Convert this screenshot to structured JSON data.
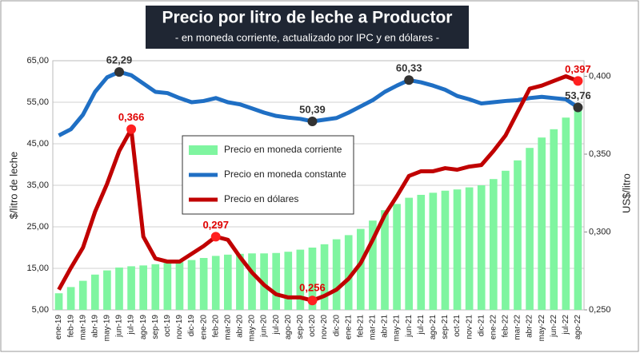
{
  "chart_data": {
    "type": "bar_line",
    "title": "Precio por litro de leche a Productor",
    "subtitle": "- en moneda corriente, actualizado por IPC y en dólares -",
    "y_label": "$/litro de leche",
    "y2_label": "US$/litro",
    "categories": [
      "ene-19",
      "feb-19",
      "mar-19",
      "abr-19",
      "may-19",
      "jun-19",
      "jul-19",
      "ago-19",
      "sep-19",
      "oct-19",
      "nov-19",
      "dic-19",
      "ene-20",
      "feb-20",
      "mar-20",
      "abr-20",
      "may-20",
      "jun-20",
      "jul-20",
      "ago-20",
      "sep-20",
      "oct-20",
      "nov-20",
      "dic-20",
      "ene-21",
      "feb-21",
      "mar-21",
      "abr-21",
      "may-21",
      "jun-21",
      "jul-21",
      "ago-21",
      "sep-21",
      "oct-21",
      "nov-21",
      "dic-21",
      "ene-22",
      "feb-22",
      "mar-22",
      "abr-22",
      "may-22",
      "jun-22",
      "jul-22",
      "ago-22"
    ],
    "ylim": [
      5,
      65
    ],
    "yticks": [
      {
        "value": 5,
        "label": "5,00"
      },
      {
        "value": 15,
        "label": "15,00"
      },
      {
        "value": 25,
        "label": "25,00"
      },
      {
        "value": 35,
        "label": "35,00"
      },
      {
        "value": 45,
        "label": "45,00"
      },
      {
        "value": 55,
        "label": "55,00"
      },
      {
        "value": 65,
        "label": "65,00"
      }
    ],
    "y2lim": [
      0.25,
      0.41
    ],
    "y2ticks": [
      {
        "value": 0.25,
        "label": "0,250"
      },
      {
        "value": 0.3,
        "label": "0,300"
      },
      {
        "value": 0.35,
        "label": "0,350"
      },
      {
        "value": 0.4,
        "label": "0,400"
      }
    ],
    "grid": true,
    "series": [
      {
        "name": "Precio en moneda corriente",
        "kind": "bar",
        "color": "#7ff5a0",
        "values": [
          9,
          10.5,
          12,
          13.5,
          14.5,
          15.2,
          15.5,
          15.7,
          16,
          16.3,
          16.5,
          17,
          17.5,
          18,
          18.3,
          18.5,
          18.6,
          18.6,
          18.7,
          19,
          19.5,
          20,
          20.8,
          22,
          23,
          24.5,
          26.5,
          29,
          30.5,
          32,
          32.7,
          33.2,
          33.7,
          34,
          34.5,
          35,
          36.5,
          38.5,
          41,
          44,
          46.5,
          48.5,
          51.3,
          53.76
        ]
      },
      {
        "name": "Precio en moneda constante",
        "kind": "line",
        "color": "#1f6fc4",
        "values": [
          47,
          48.5,
          52,
          57.5,
          61,
          62.29,
          61.5,
          59.5,
          57.5,
          57.2,
          56,
          55,
          55.3,
          56,
          55,
          54.5,
          53.5,
          52.5,
          51.7,
          51.3,
          51,
          50.39,
          50.8,
          51.2,
          52.5,
          54,
          55.5,
          57.5,
          59,
          60.33,
          59.8,
          59,
          58,
          56.5,
          55.7,
          54.7,
          55,
          55.3,
          55.5,
          56,
          56.3,
          56,
          55.7,
          53.76
        ],
        "value_labels": [
          null,
          null,
          null,
          null,
          null,
          "62,29",
          null,
          null,
          null,
          null,
          null,
          null,
          null,
          null,
          null,
          null,
          null,
          null,
          null,
          null,
          null,
          "50,39",
          null,
          null,
          null,
          null,
          null,
          null,
          null,
          "60,33",
          null,
          null,
          null,
          null,
          null,
          null,
          null,
          null,
          null,
          null,
          null,
          null,
          null,
          "53,76"
        ]
      },
      {
        "name": "Precio en dólares",
        "kind": "line",
        "axis": "y2",
        "color": "#c00000",
        "values": [
          0.263,
          0.277,
          0.29,
          0.313,
          0.331,
          0.352,
          0.366,
          0.297,
          0.283,
          0.281,
          0.281,
          0.286,
          0.291,
          0.297,
          0.295,
          0.284,
          0.274,
          0.266,
          0.26,
          0.258,
          0.258,
          0.256,
          0.259,
          0.263,
          0.27,
          0.28,
          0.295,
          0.311,
          0.323,
          0.336,
          0.339,
          0.339,
          0.341,
          0.34,
          0.342,
          0.343,
          0.352,
          0.362,
          0.377,
          0.392,
          0.394,
          0.397,
          0.4,
          0.397
        ],
        "value_labels": [
          null,
          null,
          null,
          null,
          null,
          null,
          "0,366",
          null,
          null,
          null,
          null,
          null,
          null,
          "0,297",
          null,
          null,
          null,
          null,
          null,
          null,
          null,
          "0,256",
          null,
          null,
          null,
          null,
          null,
          null,
          null,
          null,
          null,
          null,
          null,
          null,
          null,
          null,
          null,
          null,
          null,
          null,
          null,
          null,
          null,
          "0,397"
        ]
      }
    ]
  }
}
